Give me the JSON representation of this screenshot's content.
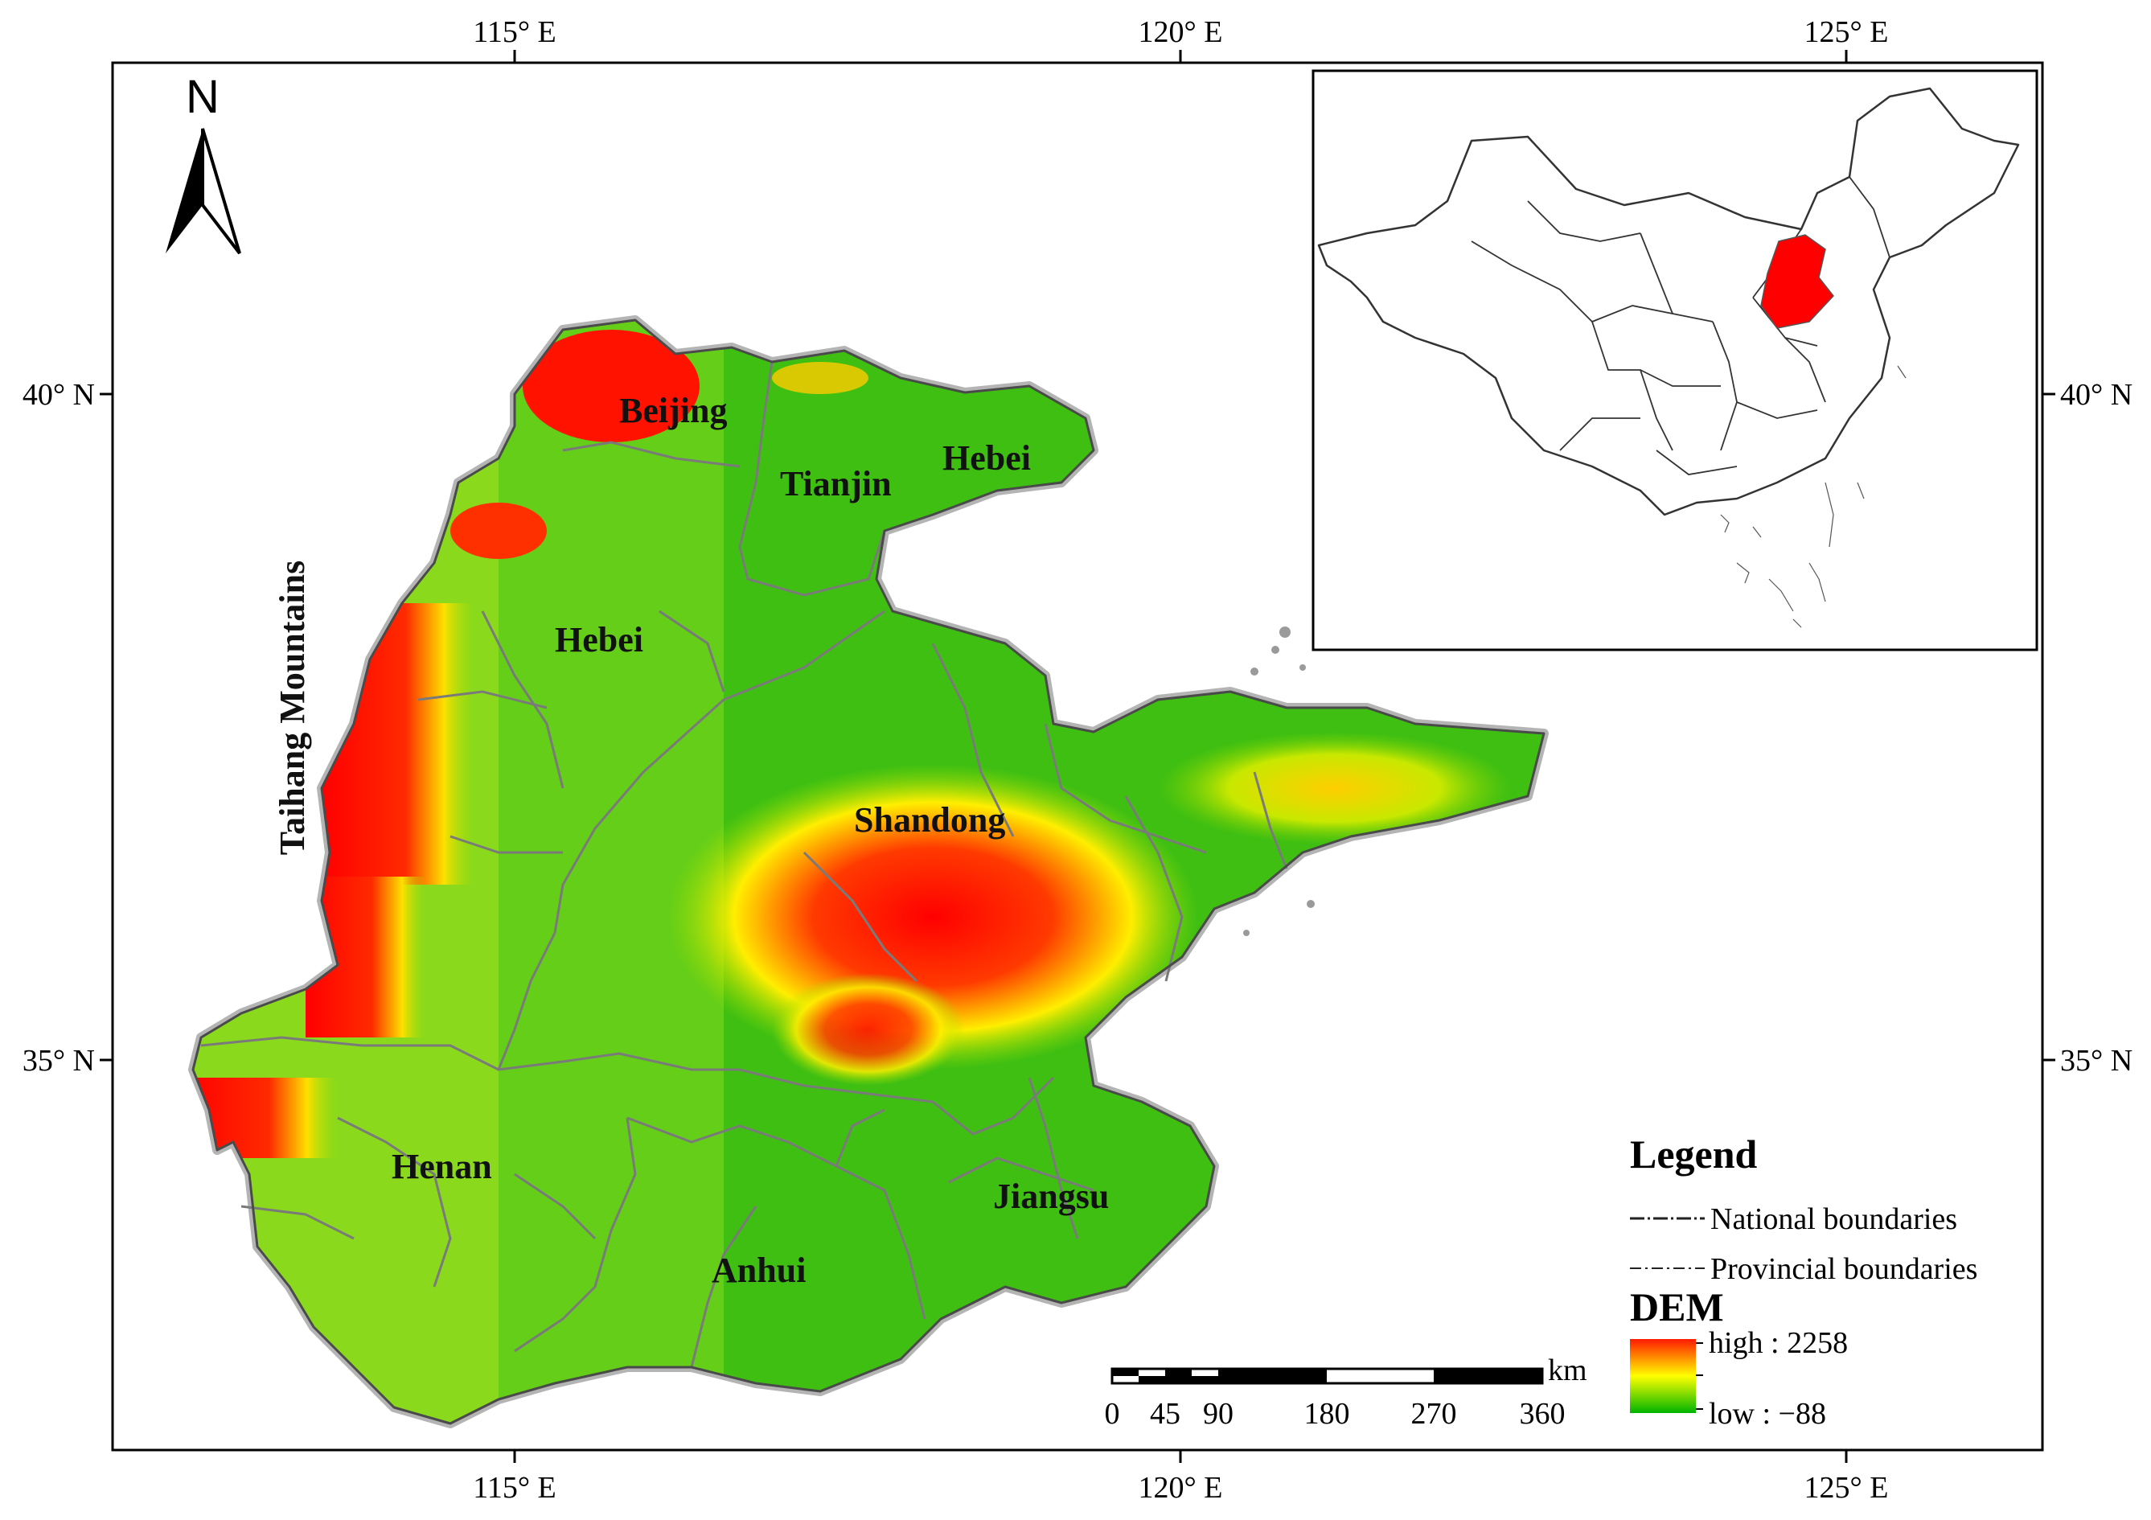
{
  "axes": {
    "top_ticks": [
      "115° E",
      "120° E",
      "125° E"
    ],
    "bottom_ticks": [
      "115° E",
      "120° E",
      "125° E"
    ],
    "left_ticks": [
      "40° N",
      "35° N"
    ],
    "right_ticks": [
      "40° N",
      "35° N"
    ]
  },
  "north_arrow": {
    "label": "N",
    "icon": "north-arrow-icon"
  },
  "labels": {
    "mountains": "Taihang Mountains",
    "beijing": "Beijing",
    "tianjin": "Tianjin",
    "hebei_ne": "Hebei",
    "hebei": "Hebei",
    "shandong": "Shandong",
    "henan": "Henan",
    "anhui": "Anhui",
    "jiangsu": "Jiangsu"
  },
  "legend": {
    "title": "Legend",
    "national": "National boundaries",
    "provincial": "Provincial boundaries",
    "dem_title": "DEM",
    "high": "high : 2258",
    "low": "low : −88"
  },
  "scale_bar": {
    "unit": "km",
    "ticks": [
      "0",
      "45",
      "90",
      "180",
      "270",
      "360"
    ]
  },
  "colors": {
    "dem_high": "#ff0000",
    "dem_mid": "#ffff00",
    "dem_low": "#00b400",
    "study_area_inset": "#ff0000"
  }
}
